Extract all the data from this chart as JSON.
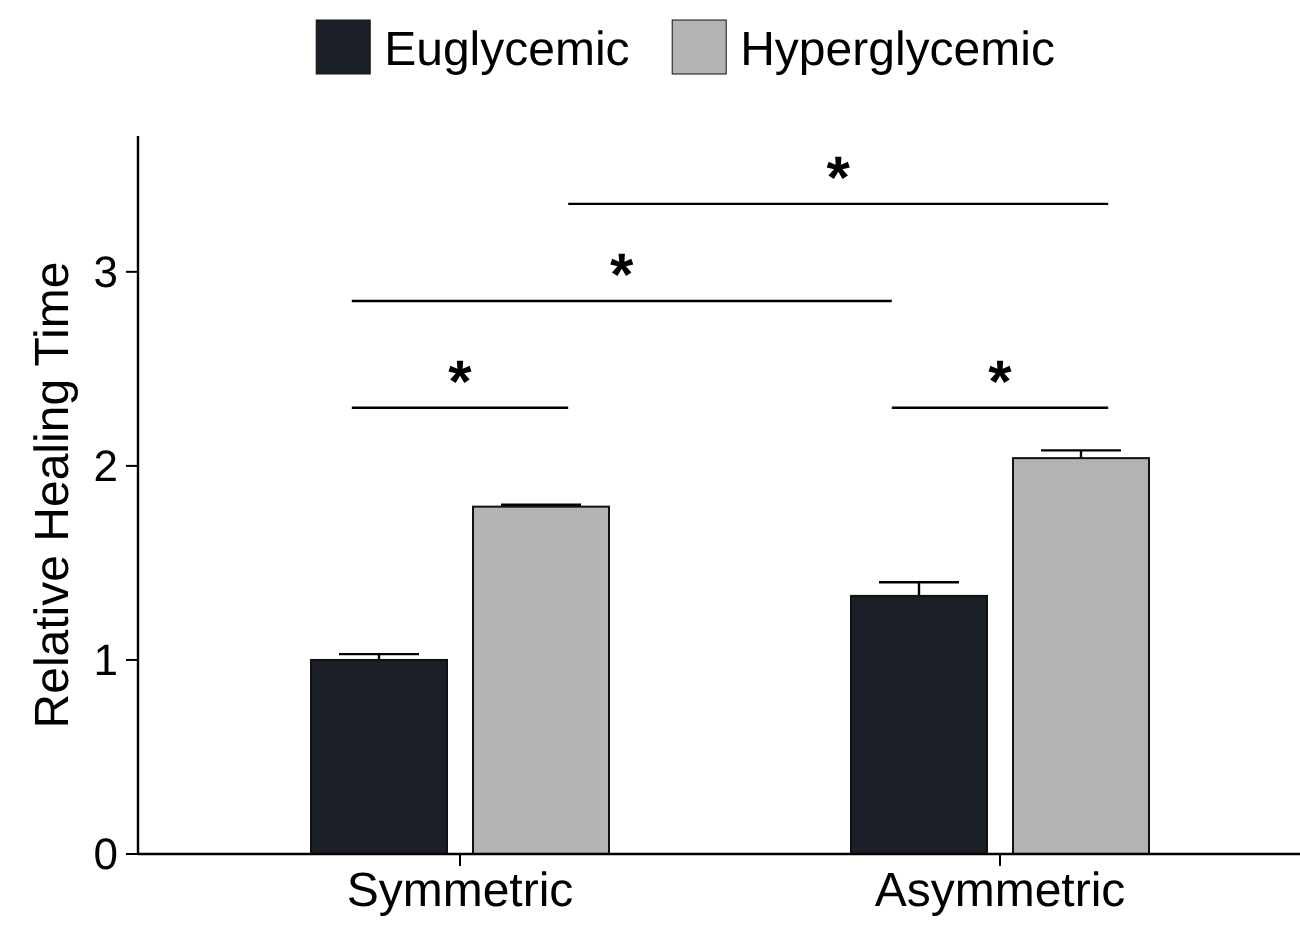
{
  "chart_data": {
    "type": "bar",
    "ylabel": "Relative Healing Time",
    "categories": [
      "Symmetric",
      "Asymmetric"
    ],
    "series": [
      {
        "name": "Euglycemic",
        "color": "#1b2028",
        "values": [
          1.0,
          1.33
        ],
        "errors": [
          0.03,
          0.07
        ]
      },
      {
        "name": "Hyperglycemic",
        "color": "#b2b4b4",
        "values": [
          1.79,
          2.04
        ],
        "errors": [
          0.01,
          0.04
        ]
      }
    ],
    "ylim": [
      0,
      3.7
    ],
    "yticks": [
      0,
      1,
      2,
      3
    ],
    "grid": false,
    "legend": "top",
    "annotations": [
      "*",
      "*",
      "*",
      "*"
    ]
  }
}
